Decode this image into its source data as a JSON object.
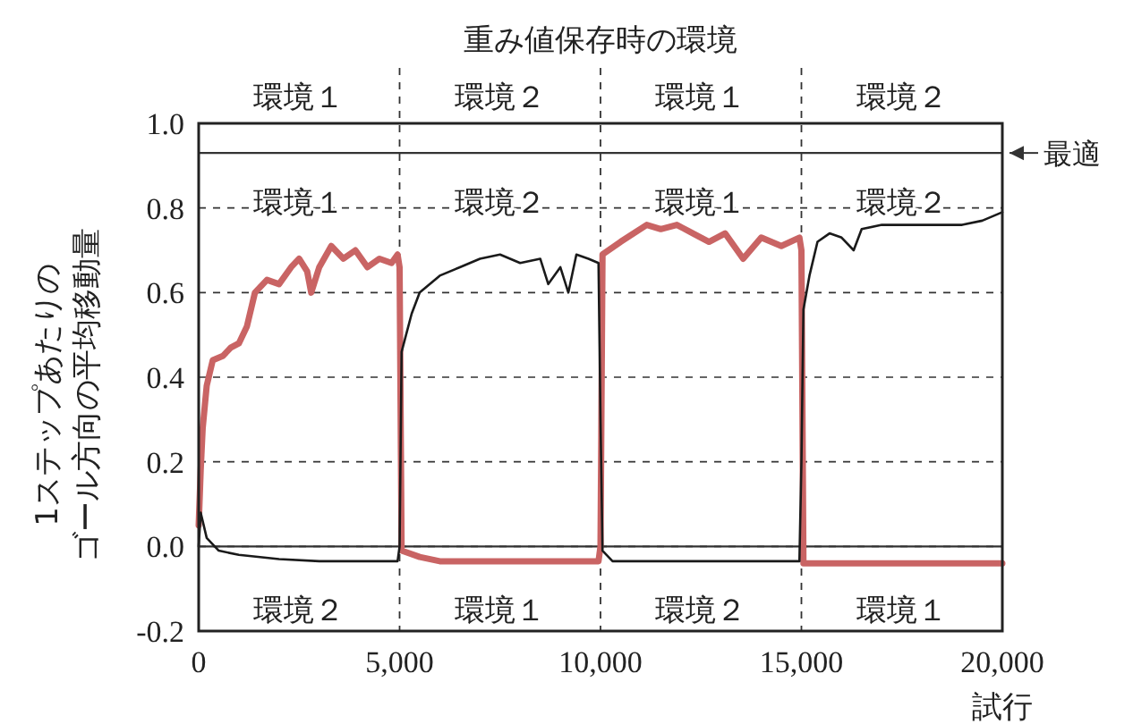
{
  "chart_data": {
    "type": "line",
    "title": "重み値保存時の環境",
    "xlabel": "試行",
    "ylabel": "1ステップあたりのゴール方向の平均移動量",
    "annotations": [
      "環境１",
      "環境２",
      "環境１",
      "環境２",
      "環境１",
      "環境２",
      "環境１",
      "環境２",
      "環境２",
      "環境１",
      "環境２",
      "環境１"
    ],
    "series": [
      {
        "color": "#c96464",
        "x": [
          0,
          50,
          100,
          200,
          350,
          600,
          800,
          1000,
          1200,
          1400,
          1700,
          2000,
          2300,
          2500,
          2700,
          2800,
          3000,
          3300,
          3600,
          3900,
          4200,
          4500,
          4800,
          4950,
          5000,
          5050,
          5500,
          6000,
          7000,
          8000,
          9000,
          9950,
          10000,
          10050,
          10500,
          11150,
          11500,
          11900,
          12300,
          12700,
          13100,
          13550,
          14000,
          14500,
          14950,
          15000,
          15050,
          16000,
          17000,
          18000,
          19000,
          20000
        ],
        "values": [
          0.05,
          0.18,
          0.28,
          0.38,
          0.44,
          0.45,
          0.47,
          0.48,
          0.52,
          0.6,
          0.63,
          0.62,
          0.66,
          0.68,
          0.65,
          0.6,
          0.66,
          0.71,
          0.68,
          0.7,
          0.66,
          0.68,
          0.67,
          0.69,
          0.66,
          -0.01,
          -0.025,
          -0.035,
          -0.035,
          -0.035,
          -0.035,
          -0.035,
          0.0,
          0.69,
          0.72,
          0.76,
          0.75,
          0.76,
          0.74,
          0.72,
          0.74,
          0.68,
          0.73,
          0.71,
          0.73,
          0.7,
          -0.04,
          -0.04,
          -0.04,
          -0.04,
          -0.04,
          -0.04
        ]
      },
      {
        "color": "#1a1a1a",
        "x": [
          0,
          50,
          200,
          500,
          1000,
          2000,
          3000,
          4000,
          4950,
          5000,
          5050,
          5300,
          5500,
          6000,
          6500,
          7000,
          7500,
          8000,
          8500,
          8700,
          9000,
          9200,
          9400,
          9700,
          9950,
          10000,
          10050,
          10300,
          12000,
          14000,
          14950,
          15000,
          15050,
          15200,
          15400,
          15700,
          16000,
          16300,
          16500,
          17000,
          18000,
          19000,
          19500,
          20000
        ],
        "values": [
          0.0,
          0.08,
          0.02,
          -0.01,
          -0.02,
          -0.03,
          -0.035,
          -0.035,
          -0.035,
          0.0,
          0.46,
          0.55,
          0.6,
          0.64,
          0.66,
          0.68,
          0.69,
          0.67,
          0.68,
          0.62,
          0.66,
          0.6,
          0.69,
          0.68,
          0.67,
          0.3,
          -0.01,
          -0.035,
          -0.035,
          -0.035,
          -0.035,
          0.2,
          0.56,
          0.64,
          0.72,
          0.74,
          0.73,
          0.7,
          0.75,
          0.76,
          0.76,
          0.76,
          0.77,
          0.79
        ]
      }
    ],
    "xlim": [
      0,
      20000
    ],
    "xticks": [
      0,
      {
        "value": 5000,
        "label": "5,000"
      },
      {
        "value": 10000,
        "label": "10,000"
      },
      {
        "value": 15000,
        "label": "15,000"
      },
      {
        "value": 20000,
        "label": "20,000"
      }
    ],
    "ylim": [
      -0.2,
      1.0
    ],
    "yticks": [
      {
        "value": -0.2,
        "label": "-0.2"
      },
      {
        "value": 0,
        "label": "0.0"
      },
      {
        "value": 0.2,
        "label": "0.2"
      },
      {
        "value": 0.4,
        "label": "0.4"
      },
      {
        "value": 0.6,
        "label": "0.6"
      },
      {
        "value": 0.8,
        "label": "0.8"
      },
      {
        "value": 1.0,
        "label": "1.0"
      }
    ],
    "grid": "y",
    "marker": "none",
    "ref_lines": [
      {
        "axis": "x",
        "value": 5000,
        "line_style": "dashed"
      },
      {
        "axis": "x",
        "value": 10000,
        "line_style": "dashed"
      },
      {
        "axis": "x",
        "value": 15000,
        "line_style": "dashed"
      },
      {
        "axis": "y",
        "value": 0,
        "line_style": "solid"
      },
      {
        "axis": "y",
        "value": 0.93,
        "label": "最適",
        "line_style": "solid"
      }
    ]
  }
}
